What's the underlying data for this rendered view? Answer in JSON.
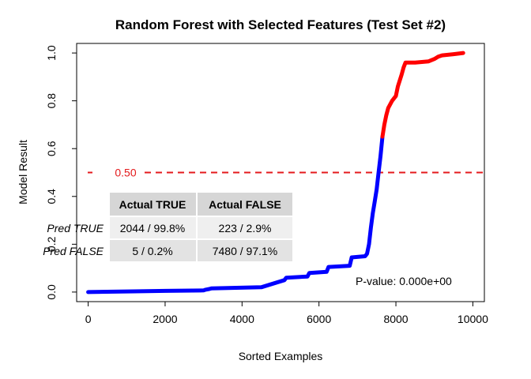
{
  "chart_data": {
    "type": "line",
    "title": "Random Forest with Selected Features (Test Set #2)",
    "xlabel": "Sorted Examples",
    "ylabel": "Model Result",
    "xlim": [
      -300,
      10300
    ],
    "ylim": [
      -0.04,
      1.04
    ],
    "xticks": [
      0,
      2000,
      4000,
      6000,
      8000,
      10000
    ],
    "yticks": [
      0.0,
      0.2,
      0.4,
      0.6,
      0.8,
      1.0
    ],
    "xtick_labels": [
      "0",
      "2000",
      "4000",
      "6000",
      "8000",
      "10000"
    ],
    "ytick_labels": [
      "0.0",
      "0.2",
      "0.4",
      "0.6",
      "0.8",
      "1.0"
    ],
    "grid": false,
    "threshold": {
      "value": 0.5,
      "label": "0.50",
      "color": "#e41a1c"
    },
    "series": [
      {
        "color": "#0000ff",
        "x": [
          0,
          1200,
          2000,
          3000,
          3050,
          3150,
          3200,
          4500,
          4700,
          4900,
          5100,
          5150,
          5700,
          5750,
          6200,
          6250,
          6800,
          6850,
          7200,
          7250,
          7300,
          7350,
          7400,
          7450,
          7500,
          7550,
          7600,
          7650
        ],
        "y": [
          0.0,
          0.003,
          0.005,
          0.007,
          0.01,
          0.013,
          0.015,
          0.02,
          0.03,
          0.04,
          0.05,
          0.06,
          0.065,
          0.08,
          0.085,
          0.105,
          0.11,
          0.145,
          0.15,
          0.16,
          0.2,
          0.27,
          0.33,
          0.38,
          0.43,
          0.5,
          0.57,
          0.65
        ]
      },
      {
        "color": "#ff0000",
        "x": [
          7650,
          7700,
          7750,
          7800,
          7900,
          8000,
          8050,
          8150,
          8200,
          8250,
          8500,
          8850,
          9000,
          9100,
          9200,
          9500,
          9750
        ],
        "y": [
          0.65,
          0.7,
          0.74,
          0.77,
          0.8,
          0.82,
          0.86,
          0.91,
          0.94,
          0.96,
          0.96,
          0.965,
          0.975,
          0.985,
          0.99,
          0.995,
          1.0
        ]
      }
    ],
    "annotations": {
      "p_value": "P-value: 0.000e+00"
    },
    "confusion_matrix": {
      "col_headers": [
        "Actual TRUE",
        "Actual FALSE"
      ],
      "rows": [
        {
          "label": "Pred TRUE",
          "cells": [
            "2044 / 99.8%",
            "223 / 2.9%"
          ]
        },
        {
          "label": "Pred FALSE",
          "cells": [
            "5 / 0.2%",
            "7480 / 97.1%"
          ]
        }
      ]
    }
  }
}
